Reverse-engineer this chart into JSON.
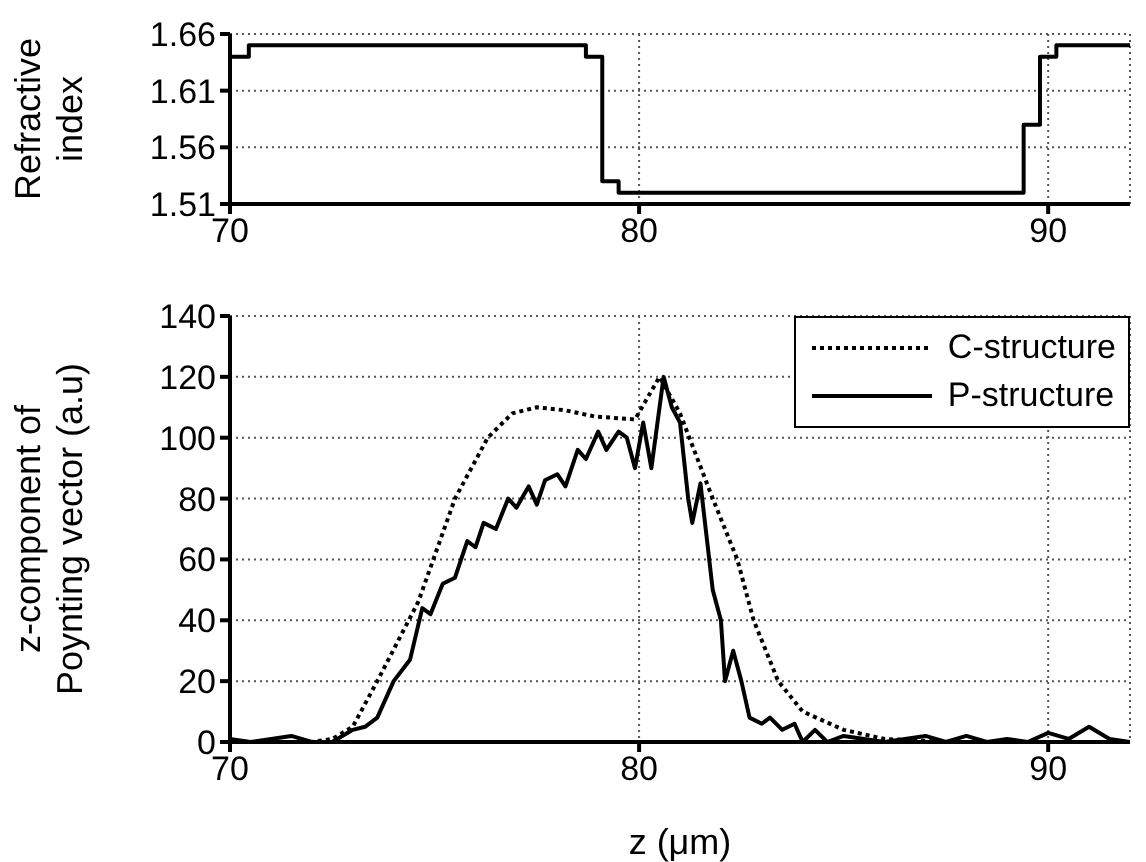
{
  "chart_data": [
    {
      "type": "step",
      "ylabel": "Refractive index",
      "xlim": [
        70,
        92
      ],
      "xticks": [
        70,
        80,
        90
      ],
      "ylim": [
        1.51,
        1.66
      ],
      "yticks": [
        1.51,
        1.56,
        1.61,
        1.66
      ],
      "grid": true,
      "legend": false,
      "marker": "none",
      "series": [
        {
          "color": "#000000",
          "line_style": "solid",
          "x": [
            70,
            70.46,
            78.7,
            79.1,
            79.5,
            89.4,
            89.8,
            90.2,
            92
          ],
          "values": [
            1.64,
            1.65,
            1.64,
            1.53,
            1.52,
            1.58,
            1.64,
            1.65,
            1.65
          ]
        }
      ]
    },
    {
      "type": "line",
      "xlabel": "z (μm)",
      "ylabel": "z-component of Poynting vector (a.u)",
      "xlim": [
        70,
        92
      ],
      "xticks": [
        70,
        80,
        90
      ],
      "ylim": [
        0,
        140
      ],
      "yticks": [
        0,
        20,
        40,
        60,
        80,
        100,
        120,
        140
      ],
      "grid": true,
      "legend": "top right",
      "marker": "none",
      "series": [
        {
          "name": "C-structure",
          "color": "#000000",
          "line_style": "dotted",
          "x": [
            70,
            72,
            72.5,
            73,
            73.6,
            74.6,
            75.5,
            76.3,
            76.9,
            77.5,
            78.2,
            78.9,
            79.9,
            80.5,
            81.0,
            81.8,
            82.4,
            82.8,
            83.4,
            84.0,
            85,
            86,
            87.5,
            92
          ],
          "values": [
            0,
            0,
            1,
            5,
            20,
            46,
            80,
            100,
            108,
            110,
            109,
            107,
            106,
            120,
            108,
            80,
            60,
            40,
            20,
            10,
            4,
            1,
            0,
            0
          ]
        },
        {
          "name": "P-structure",
          "color": "#000000",
          "line_style": "solid",
          "x": [
            70,
            70.5,
            71.5,
            72,
            72.5,
            73,
            73.3,
            73.6,
            74,
            74.4,
            74.7,
            74.9,
            75.2,
            75.5,
            75.8,
            76,
            76.2,
            76.5,
            76.8,
            77,
            77.3,
            77.5,
            77.7,
            78,
            78.2,
            78.5,
            78.7,
            79,
            79.2,
            79.5,
            79.7,
            79.9,
            80.1,
            80.3,
            80.6,
            80.8,
            81.0,
            81.2,
            81.3,
            81.5,
            81.8,
            82,
            82.1,
            82.3,
            82.5,
            82.7,
            83,
            83.2,
            83.5,
            83.8,
            84,
            84.3,
            84.6,
            85,
            85.5,
            86,
            87,
            87.5,
            88,
            88.5,
            89,
            89.5,
            90,
            90.5,
            91,
            91.5,
            92
          ],
          "values": [
            1,
            0,
            2,
            0,
            0,
            4,
            5,
            8,
            20,
            27,
            44,
            42,
            52,
            54,
            66,
            64,
            72,
            70,
            80,
            77,
            84,
            78,
            86,
            88,
            84,
            96,
            93,
            102,
            96,
            102,
            100,
            90,
            105,
            90,
            120,
            110,
            105,
            80,
            72,
            85,
            50,
            40,
            20,
            30,
            20,
            8,
            6,
            8,
            4,
            6,
            0,
            4,
            0,
            2,
            1,
            0,
            2,
            0,
            2,
            0,
            1,
            0,
            3,
            1,
            5,
            1,
            0
          ]
        }
      ]
    }
  ]
}
